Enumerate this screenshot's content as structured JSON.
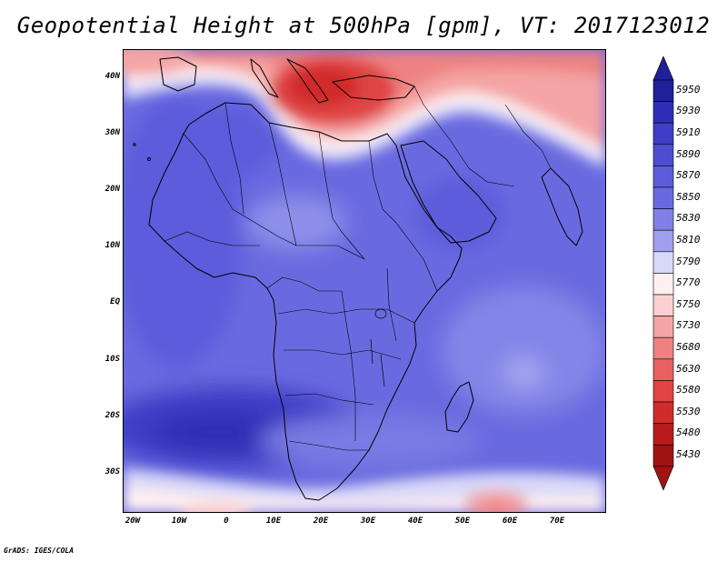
{
  "title": "Geopotential Height at 500hPa [gpm], VT: 2017123012",
  "map": {
    "region": "Africa and surrounding seas",
    "variable": "500hPa geopotential height",
    "units": "gpm",
    "lat_range": [
      -37,
      44
    ],
    "lon_range": [
      -23,
      80
    ]
  },
  "axes": {
    "lat_ticks": [
      "40N",
      "30N",
      "20N",
      "10N",
      "EQ",
      "10S",
      "20S",
      "30S"
    ],
    "lon_ticks": [
      "20W",
      "10W",
      "0",
      "10E",
      "20E",
      "30E",
      "40E",
      "50E",
      "60E",
      "70E"
    ]
  },
  "colorbar": {
    "levels": [
      "5950",
      "5930",
      "5910",
      "5890",
      "5870",
      "5850",
      "5830",
      "5810",
      "5790",
      "5770",
      "5750",
      "5730",
      "5680",
      "5630",
      "5580",
      "5530",
      "5480",
      "5430"
    ],
    "colors": [
      "#20209a",
      "#2e2eb6",
      "#3e3ec6",
      "#4e4ed2",
      "#5c5cdc",
      "#6a6ae0",
      "#8080e6",
      "#a0a0ee",
      "#d8d8f8",
      "#fff0f0",
      "#fcd0d0",
      "#f4a4a4",
      "#ee8282",
      "#e86060",
      "#e04444",
      "#d02c2c",
      "#b81c1c",
      "#a01414"
    ]
  },
  "footer": "GrADS: IGES/COLA"
}
